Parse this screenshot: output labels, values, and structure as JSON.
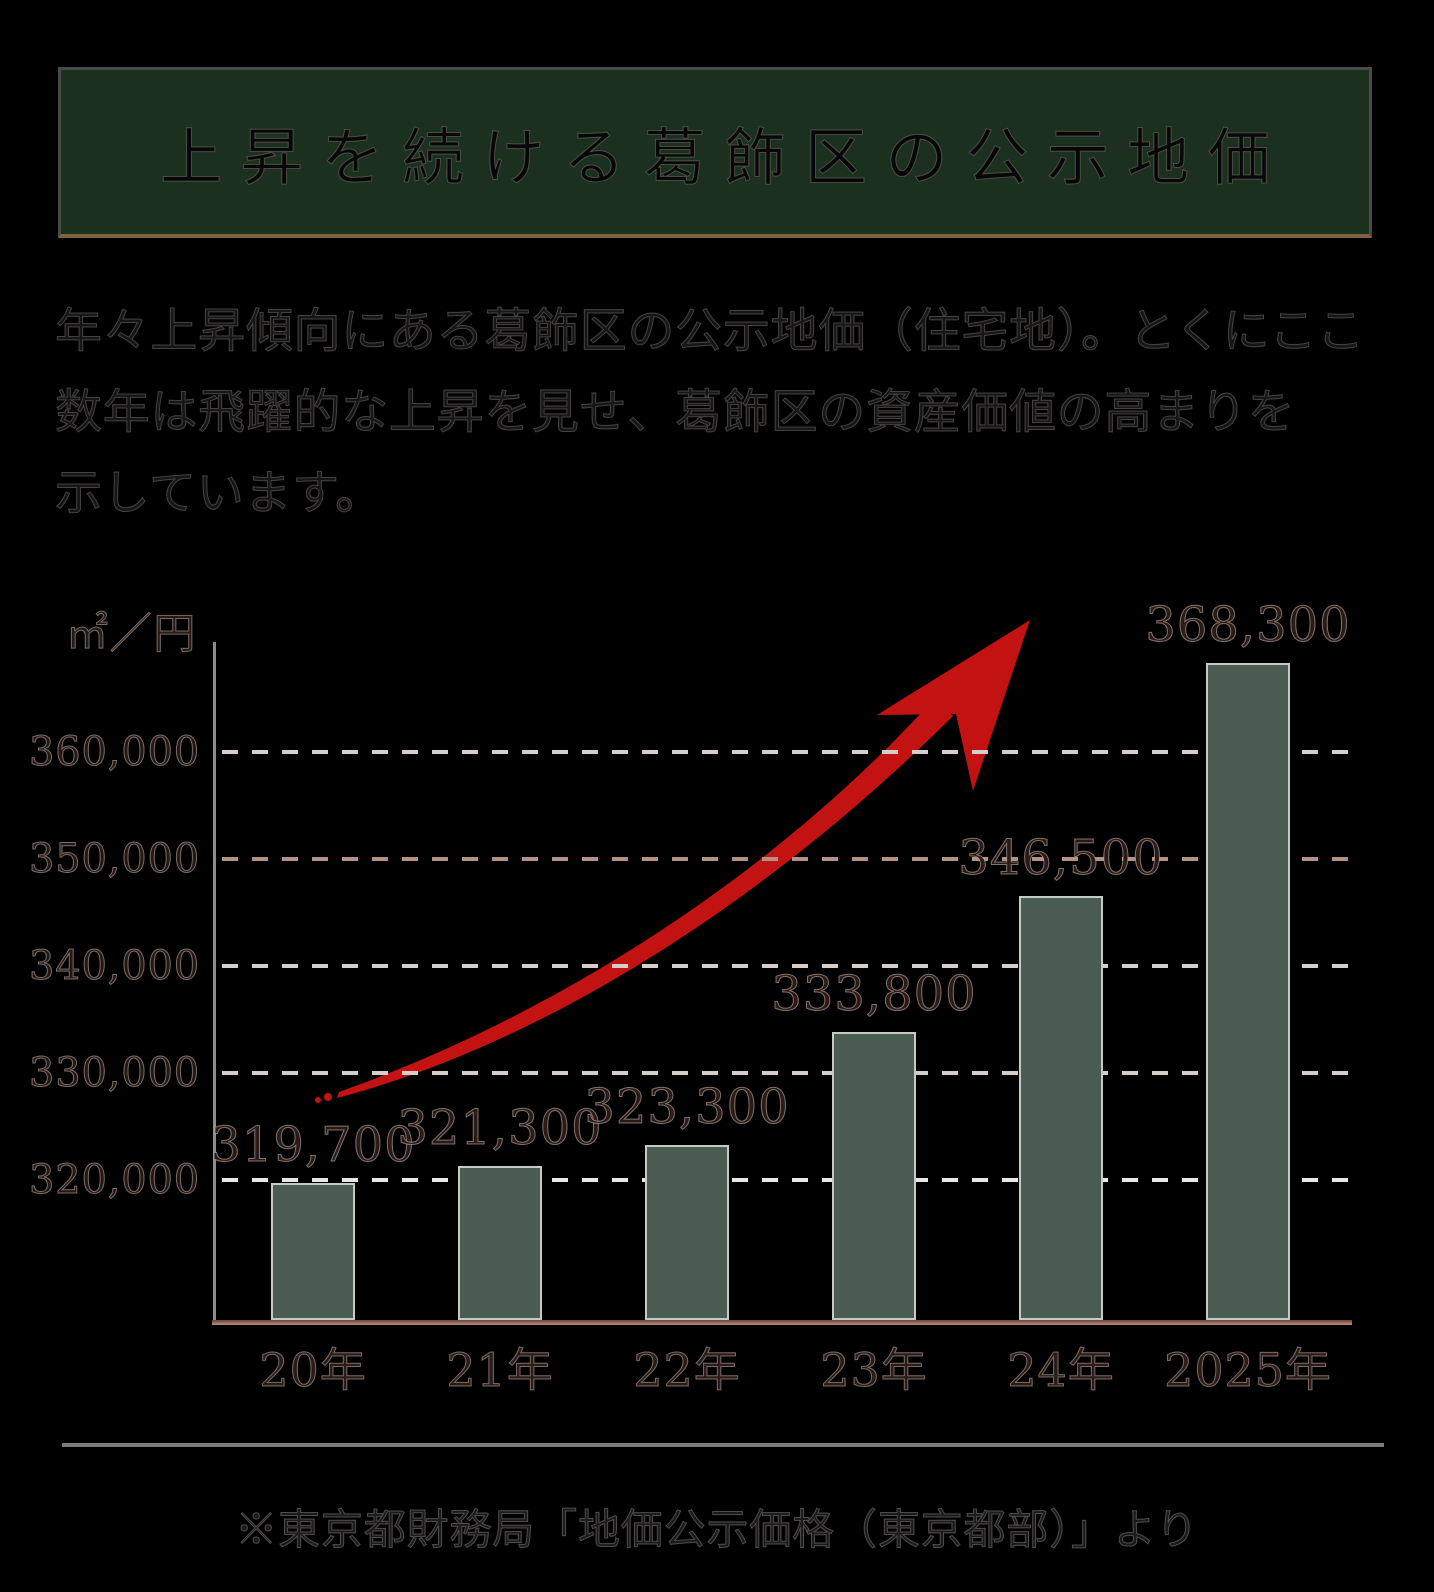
{
  "banner": {
    "title": "上昇を続ける葛飾区の公示地価",
    "bg": "#1c3020",
    "border": "#4a4a4a",
    "border_bottom": "#7f6240"
  },
  "intro": {
    "lines": [
      "年々上昇傾向にある葛飾区の公示地価（住宅地）。とくにここ",
      "数年は飛躍的な上昇を見せ、葛飾区の資産価値の高まりを",
      "示しています。"
    ]
  },
  "chart_data": {
    "type": "bar",
    "title": "上昇を続ける葛飾区の公示地価",
    "unit_label": "㎡／円",
    "categories": [
      "20年",
      "21年",
      "22年",
      "23年",
      "24年",
      "2025年"
    ],
    "values": [
      319700,
      321300,
      323300,
      333800,
      346500,
      368300
    ],
    "value_labels": [
      "319,700",
      "321,300",
      "323,300",
      "333,800",
      "346,500",
      "368,300"
    ],
    "xlabel": "",
    "ylabel": "㎡／円",
    "ylim": [
      307500,
      373000
    ],
    "grid": "dashed horizontal",
    "legend": "none",
    "y_ticks": [
      {
        "value": 360000,
        "label": "360,000"
      },
      {
        "value": 350000,
        "label": "350,000"
      },
      {
        "value": 340000,
        "label": "340,000"
      },
      {
        "value": 330000,
        "label": "330,000"
      },
      {
        "value": 320000,
        "label": "320,000"
      }
    ],
    "trend_arrow": {
      "shape": "curved up-right arrow",
      "direction": "up-right"
    },
    "colors": {
      "bar_fill": "#4b5c52",
      "bar_border": "#c3cbc4",
      "arrow": "#c21212",
      "gridline": "#d5cfcb",
      "gridline_350k": "#b29086",
      "gridline_320k": "#eae6e2",
      "axis_line": "#8c8c8c",
      "baseline_top": "#6b433b",
      "baseline_bottom": "#bd917e"
    }
  },
  "footer": {
    "source": "※東京都財務局「地価公示価格（東京都部）」より"
  }
}
